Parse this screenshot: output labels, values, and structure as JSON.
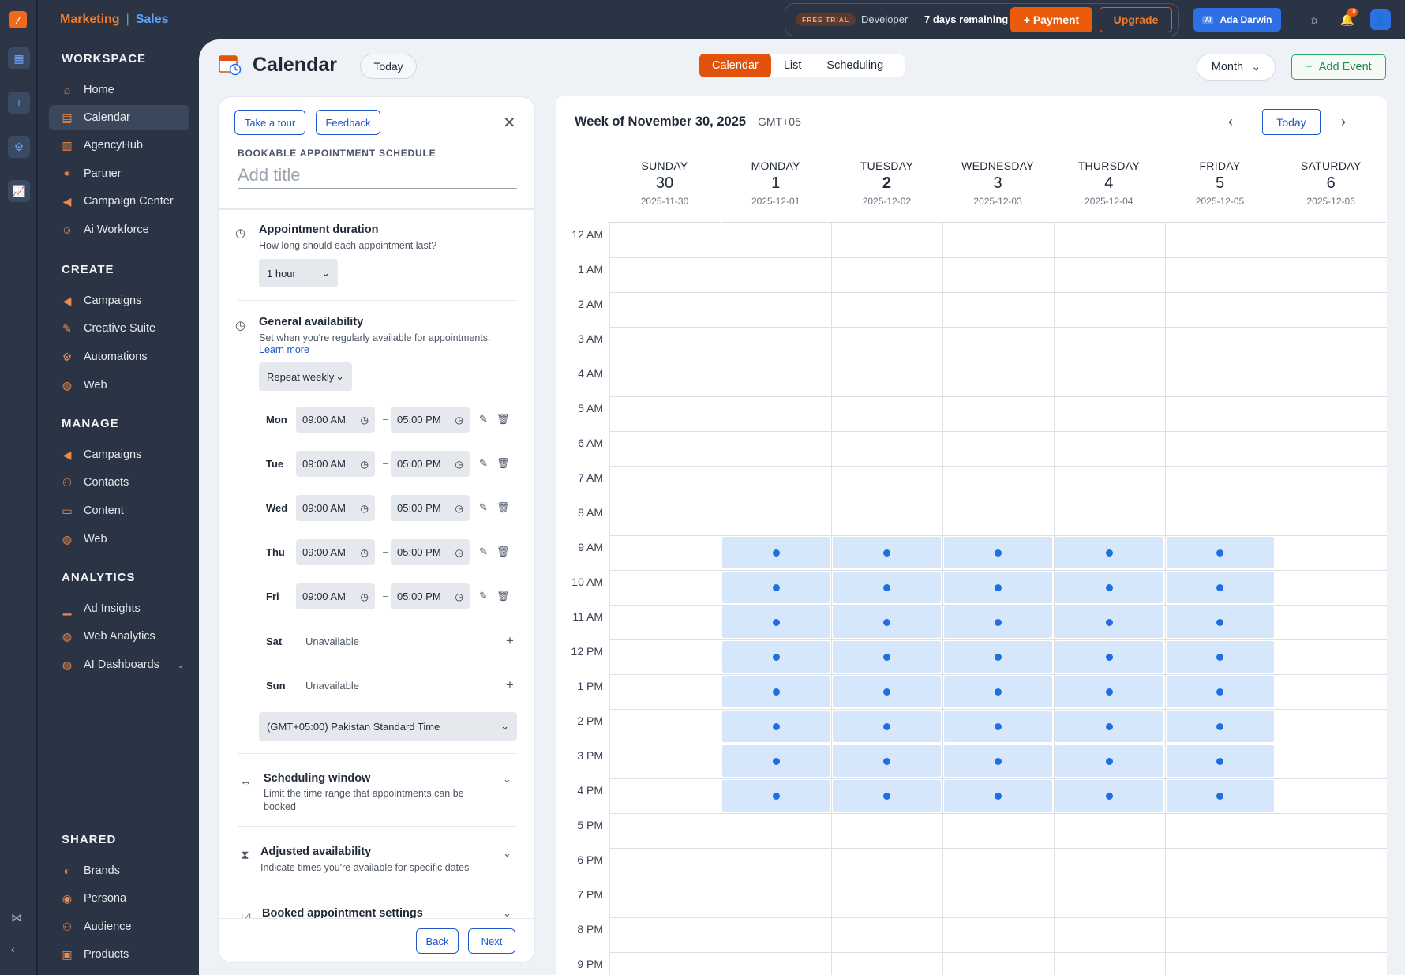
{
  "top": {
    "brand_left": "Marketing",
    "brand_sep": "|",
    "brand_right": "Sales",
    "trial_badge": "FREE TRIAL",
    "plan": "Developer",
    "days_remaining": "7 days remaining",
    "payment_label": "+ Payment",
    "upgrade_label": "Upgrade",
    "user_prefix": "AI",
    "user_name": "Ada Darwin",
    "notif_count": "10"
  },
  "sidebar": {
    "workspace": {
      "title": "WORKSPACE",
      "items": [
        "Home",
        "Calendar",
        "AgencyHub",
        "Partner",
        "Campaign Center",
        "Ai Workforce"
      ]
    },
    "create": {
      "title": "CREATE",
      "items": [
        "Campaigns",
        "Creative Suite",
        "Automations",
        "Web"
      ]
    },
    "manage": {
      "title": "MANAGE",
      "items": [
        "Campaigns",
        "Contacts",
        "Content",
        "Web"
      ]
    },
    "analytics": {
      "title": "ANALYTICS",
      "items": [
        "Ad Insights",
        "Web Analytics",
        "AI Dashboards"
      ]
    },
    "shared": {
      "title": "SHARED",
      "items": [
        "Brands",
        "Persona",
        "Audience",
        "Products"
      ]
    }
  },
  "header": {
    "title": "Calendar",
    "today": "Today",
    "tabs": [
      "Calendar",
      "List",
      "Scheduling"
    ],
    "view_select": "Month",
    "add_event": "Add Event"
  },
  "panel": {
    "take_tour": "Take a tour",
    "feedback": "Feedback",
    "schedule_label": "BOOKABLE APPOINTMENT SCHEDULE",
    "title_placeholder": "Add title",
    "duration_title": "Appointment duration",
    "duration_sub": "How long should each appointment last?",
    "duration_value": "1 hour",
    "avail_title": "General availability",
    "avail_sub": "Set when you're regularly available for appointments.",
    "learn_more": "Learn more",
    "repeat_value": "Repeat weekly",
    "days": [
      {
        "name": "Mon",
        "start": "09:00 AM",
        "end": "05:00 PM"
      },
      {
        "name": "Tue",
        "start": "09:00 AM",
        "end": "05:00 PM"
      },
      {
        "name": "Wed",
        "start": "09:00 AM",
        "end": "05:00 PM"
      },
      {
        "name": "Thu",
        "start": "09:00 AM",
        "end": "05:00 PM"
      },
      {
        "name": "Fri",
        "start": "09:00 AM",
        "end": "05:00 PM"
      }
    ],
    "time_sep": "–",
    "sat": "Sat",
    "sun": "Sun",
    "unavailable": "Unavailable",
    "timezone": "(GMT+05:00) Pakistan Standard Time",
    "window_title": "Scheduling window",
    "window_sub": "Limit the time range that appointments can be booked",
    "adjusted_title": "Adjusted availability",
    "adjusted_sub": "Indicate times you're available for specific dates",
    "booked_title": "Booked appointment settings",
    "back": "Back",
    "next": "Next"
  },
  "calendar": {
    "week_of": "Week of November 30, 2025",
    "tz": "GMT+05",
    "today": "Today",
    "days": [
      {
        "name": "SUNDAY",
        "num": "30",
        "date": "2025-11-30"
      },
      {
        "name": "MONDAY",
        "num": "1",
        "date": "2025-12-01"
      },
      {
        "name": "TUESDAY",
        "num": "2",
        "date": "2025-12-02"
      },
      {
        "name": "WEDNESDAY",
        "num": "3",
        "date": "2025-12-03"
      },
      {
        "name": "THURSDAY",
        "num": "4",
        "date": "2025-12-04"
      },
      {
        "name": "FRIDAY",
        "num": "5",
        "date": "2025-12-05"
      },
      {
        "name": "SATURDAY",
        "num": "6",
        "date": "2025-12-06"
      }
    ],
    "hours": [
      "12 AM",
      "1 AM",
      "2 AM",
      "3 AM",
      "4 AM",
      "5 AM",
      "6 AM",
      "7 AM",
      "8 AM",
      "9 AM",
      "10 AM",
      "11 AM",
      "12 PM",
      "1 PM",
      "2 PM",
      "3 PM",
      "4 PM",
      "5 PM",
      "6 PM",
      "7 PM",
      "8 PM",
      "9 PM"
    ],
    "available_days": [
      1,
      2,
      3,
      4,
      5
    ],
    "available_hour_start": 9,
    "available_hour_end": 17
  }
}
